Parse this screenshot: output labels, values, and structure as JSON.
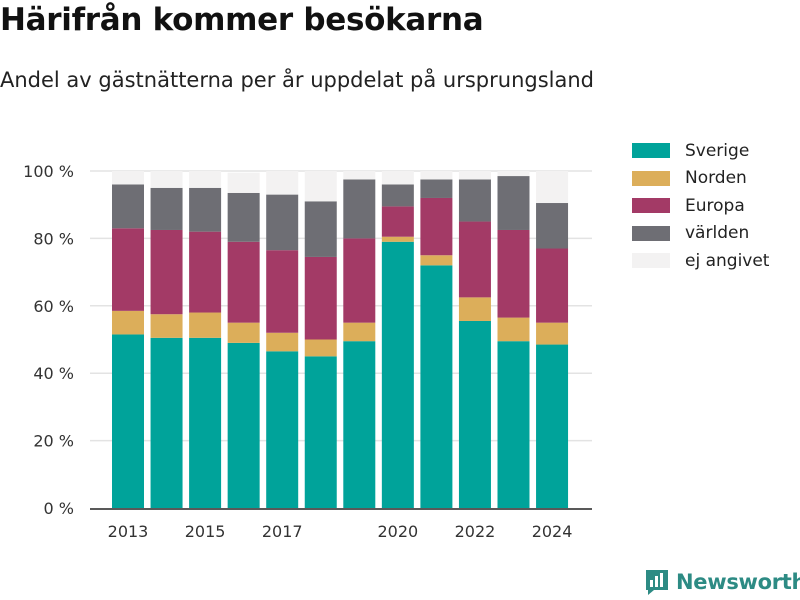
{
  "title": "Härifrån kommer besökarna",
  "subtitle": "Andel av gästnätterna per år uppdelat på ursprungsland",
  "brand": "Newsworthy",
  "brand_icon": "newsworthy-logo-icon",
  "colors": {
    "Sverige": "#00a39a",
    "Norden": "#dcae5a",
    "Europa": "#a33a66",
    "världen": "#6e6e74",
    "ej angivet": "#f3f2f2",
    "grid": "#e3e3e3",
    "axis": "#222222"
  },
  "chart_data": {
    "type": "bar",
    "stacked": true,
    "categories": [
      "2013",
      "2014",
      "2015",
      "2016",
      "2017",
      "2018",
      "2019",
      "2020",
      "2021",
      "2022",
      "2023",
      "2024"
    ],
    "series": [
      {
        "name": "Sverige",
        "values": [
          51.5,
          50.5,
          50.5,
          49,
          46.5,
          45,
          49.5,
          79,
          72,
          55.5,
          49.5,
          48.5
        ]
      },
      {
        "name": "Norden",
        "values": [
          7,
          7,
          7.5,
          6,
          5.5,
          5,
          5.5,
          1.5,
          3,
          7,
          7,
          6.5
        ]
      },
      {
        "name": "Europa",
        "values": [
          24.5,
          25,
          24,
          24,
          24.5,
          24.5,
          25,
          9,
          17,
          22.5,
          26,
          22
        ]
      },
      {
        "name": "världen",
        "values": [
          13,
          12.5,
          13,
          14.5,
          16.5,
          16.5,
          17.5,
          6.5,
          5.5,
          12.5,
          16,
          13.5
        ]
      },
      {
        "name": "ej angivet",
        "values": [
          4,
          5,
          5,
          6,
          7,
          9,
          2.5,
          4,
          2.5,
          2.5,
          1.5,
          9.5
        ]
      }
    ],
    "x_tick_labels": [
      "2013",
      "2015",
      "2017",
      "2020",
      "2022",
      "2024"
    ],
    "y_tick_labels": [
      "0 %",
      "20 %",
      "40 %",
      "60 %",
      "80 %",
      "100 %"
    ],
    "ylim": [
      0,
      100
    ],
    "grid": true,
    "legend_position": "right"
  }
}
